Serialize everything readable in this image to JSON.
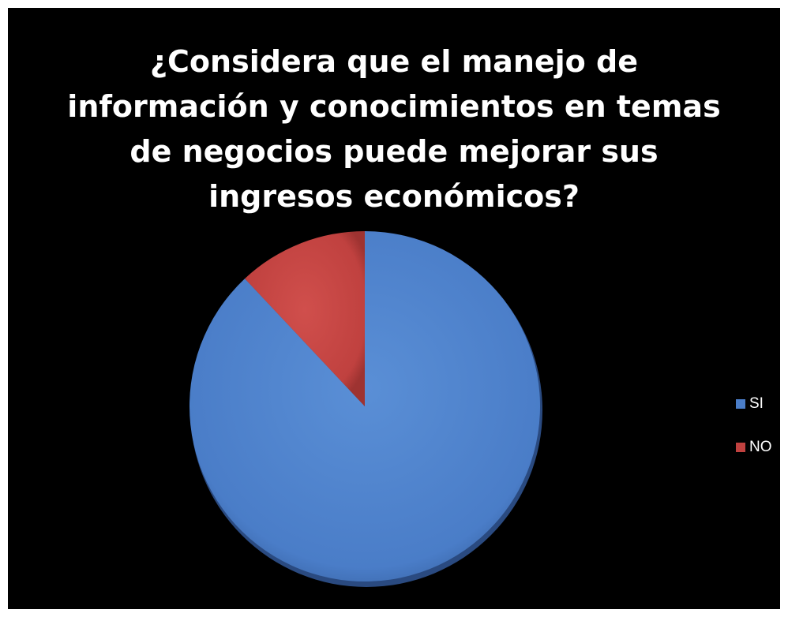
{
  "chart_data": {
    "type": "pie",
    "title": "¿Considera que el manejo de\ninformación y conocimientos en temas\nde negocios puede mejorar sus\ningresos económicos?",
    "categories": [
      "SI",
      "NO"
    ],
    "values": [
      88,
      12
    ],
    "colors": [
      "#4a7dc8",
      "#c0413f"
    ],
    "legend_position": "right"
  }
}
